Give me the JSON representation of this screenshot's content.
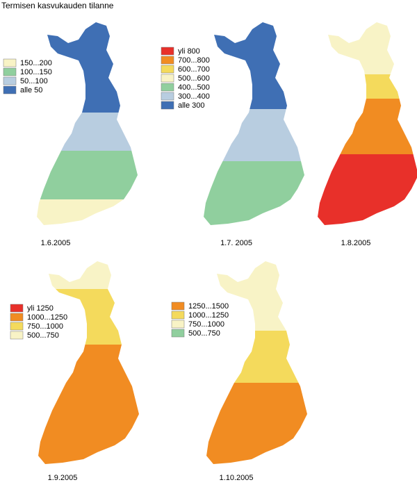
{
  "title": "Termisen kasvukauden tilanne",
  "maps": [
    {
      "date": "1.6.2005",
      "legend": [
        {
          "label": "150...200",
          "color": "#f8f3c6"
        },
        {
          "label": "100...150",
          "color": "#90cf9e"
        },
        {
          "label": "50...100",
          "color": "#b8cde0"
        },
        {
          "label": "alle 50",
          "color": "#3f6fb4"
        }
      ]
    },
    {
      "date": "1.7. 2005",
      "legend": [
        {
          "label": "yli 800",
          "color": "#e8302a"
        },
        {
          "label": "700...800",
          "color": "#f18c22"
        },
        {
          "label": "600...700",
          "color": "#f4da5c"
        },
        {
          "label": "500...600",
          "color": "#f8f3c6"
        },
        {
          "label": "400...500",
          "color": "#90cf9e"
        },
        {
          "label": "300...400",
          "color": "#b8cde0"
        },
        {
          "label": "alle 300",
          "color": "#3f6fb4"
        }
      ]
    },
    {
      "date": "1.8.2005"
    },
    {
      "date": "1.9.2005",
      "legend": [
        {
          "label": "yli 1250",
          "color": "#e8302a"
        },
        {
          "label": "1000...1250",
          "color": "#f18c22"
        },
        {
          "label": "750...1000",
          "color": "#f4da5c"
        },
        {
          "label": "500...750",
          "color": "#f8f3c6"
        }
      ]
    },
    {
      "date": "1.10.2005",
      "legend": [
        {
          "label": "1250...1500",
          "color": "#f18c22"
        },
        {
          "label": "1000...1250",
          "color": "#f4da5c"
        },
        {
          "label": "750...1000",
          "color": "#f8f3c6"
        },
        {
          "label": "500...750",
          "color": "#90cf9e"
        }
      ]
    }
  ]
}
